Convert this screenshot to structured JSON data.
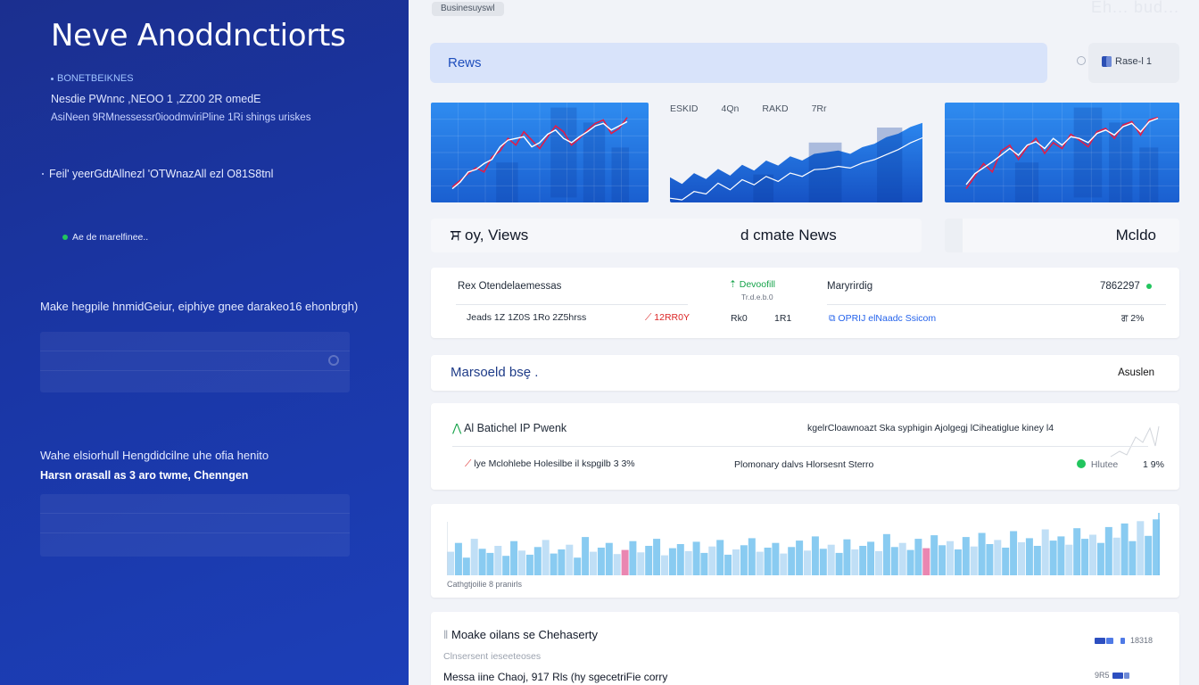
{
  "sidebar": {
    "title": "Neve Anoddnctiorts",
    "tag": "BONETBEIKNES",
    "line1": "Nesdie PWnnc ,NEOO 1 ,ZZ00  2R omedE",
    "line2": "AsiNeen 9RMnessessr0ioodmviriPline  1Ri shings uriskes",
    "line3": "Feil' yeerGdtAllnezl 'OTWnazAll ezl O81S8tnl",
    "status": "Ae de marelfinee..",
    "make": "Make hegpile hnmidGeiur, eiphiye gnee darakeo16 ehonbrgh)",
    "make2": "Wahe elsiorhull Hengdidcilne uhe ofia henito",
    "make3": "Harsn orasall as 3 aro  twme, Chenngen"
  },
  "header": {
    "breadcrumb": "Businesuyswl",
    "top_right": "Eh... bud...",
    "news_label": "Rews",
    "user_label": "Rase-l 1"
  },
  "chart_strip": {
    "middle_ticks": [
      "ESKID",
      "4Qn",
      "RAKD",
      "7Rr"
    ]
  },
  "labels": {
    "views": "ਸ oy, Views",
    "climate": "d cmate News",
    "right": "Mcldo"
  },
  "table1": {
    "r1c1": "Rex Otendelaemessas",
    "r1c2": "Devoofill",
    "r1c2b": "Tr.d.e.b.0",
    "r1c3": "Maryrirdig",
    "r1c4": "7862297",
    "r2c1": "Jeads 1Z 1Z0S  1Ro    2Z5hrss",
    "r2c2": "12RR0Y",
    "r2c3": "Rk0    ",
    "r2c3b": "1R1",
    "r2c4": "OPRIJ elNaadc Ssicom",
    "r2c5": "ਗ 2%"
  },
  "marketbar": {
    "label": "Marsoeld bsȩ .",
    "right": "Asuslen"
  },
  "table2": {
    "r1c1": "Al Batichel IP Pwenk",
    "r1c2": "kgelrCloawnoazt Ska syphigin Ajolgegj lCiheatiglue  kiney  l4",
    "r2c1": "lye Mclohlebe Holesilbe  il   kspgilb  3 3%",
    "r2c2": "Plomonary dalvs Hlorsesnt Sterro",
    "r2c3": "Hlutee",
    "r2c4": "1 9%"
  },
  "bars_caption": "Cathgtjoilie 8  pranirls",
  "footer": {
    "title": "Moake oilans se Chehaserty",
    "sub": "Clnsersent ieseeteoses",
    "line": "Messa iine Chaoj, 917 Rls  (hy sgecetriFie corry",
    "r1": "18318",
    "r2": "9R5"
  },
  "chart_data": [
    {
      "type": "line",
      "series": [
        {
          "values": [
            12,
            20,
            28,
            35,
            30,
            48,
            55,
            70,
            62,
            78,
            68,
            58,
            72,
            85,
            78,
            62,
            70,
            80,
            88,
            92,
            76,
            82,
            95
          ]
        },
        {
          "values": [
            10,
            18,
            30,
            33,
            40,
            45,
            60,
            68,
            70,
            72,
            60,
            65,
            75,
            80,
            70,
            65,
            72,
            78,
            85,
            88,
            80,
            85,
            90
          ]
        }
      ],
      "colors": [
        "#e11d48",
        "#ffffff"
      ]
    },
    {
      "type": "area",
      "series": [
        {
          "values": [
            30,
            22,
            35,
            28,
            40,
            32,
            45,
            38,
            50,
            44,
            55,
            50,
            58,
            60,
            62,
            58,
            66,
            70,
            78,
            82,
            90,
            95
          ]
        },
        {
          "values": [
            20,
            18,
            28,
            25,
            38,
            30,
            42,
            36,
            46,
            40,
            50,
            46,
            54,
            55,
            58,
            56,
            62,
            66,
            72,
            78,
            86,
            92
          ]
        }
      ],
      "colors": [
        "#1e63d6",
        "#ffffff"
      ]
    },
    {
      "type": "line",
      "series": [
        {
          "values": [
            10,
            25,
            40,
            30,
            55,
            62,
            45,
            60,
            70,
            52,
            65,
            58,
            75,
            68,
            60,
            78,
            82,
            70,
            86,
            90,
            74,
            92,
            95
          ]
        },
        {
          "values": [
            15,
            28,
            35,
            42,
            50,
            58,
            50,
            62,
            66,
            58,
            70,
            62,
            72,
            70,
            65,
            76,
            80,
            74,
            84,
            88,
            78,
            90,
            94
          ]
        }
      ],
      "colors": [
        "#e11d48",
        "#ffffff"
      ]
    },
    {
      "type": "bar",
      "values": [
        40,
        55,
        30,
        62,
        45,
        38,
        50,
        33,
        58,
        42,
        35,
        48,
        60,
        37,
        44,
        52,
        30,
        65,
        40,
        47,
        55,
        36,
        43,
        58,
        39,
        50,
        62,
        34,
        46,
        53,
        41,
        57,
        38,
        49,
        60,
        35,
        44,
        51,
        63,
        40,
        47,
        55,
        37,
        48,
        59,
        42,
        66,
        45,
        52,
        38,
        61,
        44,
        50,
        57,
        41,
        70,
        48,
        55,
        43,
        62,
        46,
        68,
        51,
        58,
        44,
        65,
        49,
        72,
        53,
        60,
        47,
        75,
        56,
        63,
        50,
        78,
        59,
        66,
        52,
        80,
        62,
        69,
        55,
        82,
        64,
        88,
        58,
        92,
        67,
        95
      ],
      "highlight": [
        22,
        60
      ],
      "colors": [
        "#7cc5ef",
        "#b9dcf5",
        "#e879a8"
      ]
    }
  ]
}
